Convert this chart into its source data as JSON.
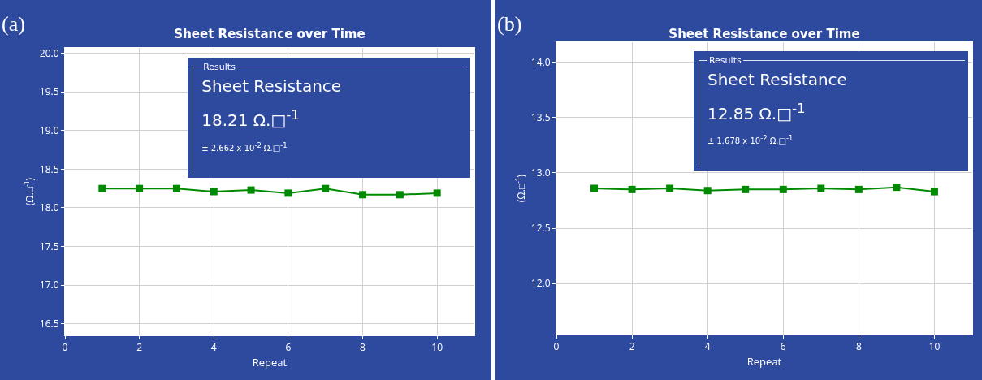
{
  "chart_data": [
    {
      "type": "line",
      "title": "Sheet Resistance over Time",
      "xlabel": "Repeat",
      "ylabel": "(Ω.□$^{-1}$)",
      "annotations": [
        "(a)",
        "Results",
        "Sheet Resistance",
        "18.21 Ω.□$^{-1}$",
        "± 2.662 x 10$^{-2}$ Ω.□$^{-1}$"
      ],
      "x": [
        1,
        2,
        3,
        4,
        5,
        6,
        7,
        8,
        9,
        10
      ],
      "series": [
        {
          "color": "#008a00",
          "values": [
            18.25,
            18.25,
            18.25,
            18.21,
            18.23,
            18.19,
            18.25,
            18.17,
            18.17,
            18.19
          ]
        }
      ],
      "xlim": [
        0,
        11
      ],
      "xticks": [
        0,
        2,
        4,
        6,
        8,
        10
      ],
      "ylim": [
        16.35,
        20.07
      ],
      "yticks": [
        16.5,
        {
          "value": 17,
          "label": "17.0"
        },
        17.5,
        {
          "value": 18,
          "label": "18.0"
        },
        18.5,
        {
          "value": 19,
          "label": "19.0"
        },
        19.5,
        {
          "value": 20,
          "label": "20.0"
        }
      ],
      "grid": true,
      "marker": "square",
      "line_style": "solid"
    },
    {
      "type": "line",
      "title": "Sheet Resistance over Time",
      "xlabel": "Repeat",
      "ylabel": "(Ω.□$^{-1}$)",
      "annotations": [
        "(b)",
        "Results",
        "Sheet Resistance",
        "12.85 Ω.□$^{-1}$",
        "± 1.678 x 10$^{-2}$ Ω.□$^{-1}$"
      ],
      "x": [
        1,
        2,
        3,
        4,
        5,
        6,
        7,
        8,
        9,
        10
      ],
      "series": [
        {
          "color": "#008a00",
          "values": [
            12.86,
            12.85,
            12.86,
            12.84,
            12.85,
            12.85,
            12.86,
            12.85,
            12.87,
            12.83
          ]
        }
      ],
      "xlim": [
        0,
        11
      ],
      "xticks": [
        0,
        2,
        4,
        6,
        8,
        10
      ],
      "ylim": [
        11.54,
        14.18
      ],
      "yticks": [
        {
          "value": 12,
          "label": "12.0"
        },
        12.5,
        {
          "value": 13,
          "label": "13.0"
        },
        13.5,
        {
          "value": 14,
          "label": "14.0"
        }
      ],
      "grid": true,
      "marker": "square",
      "line_style": "solid"
    }
  ]
}
